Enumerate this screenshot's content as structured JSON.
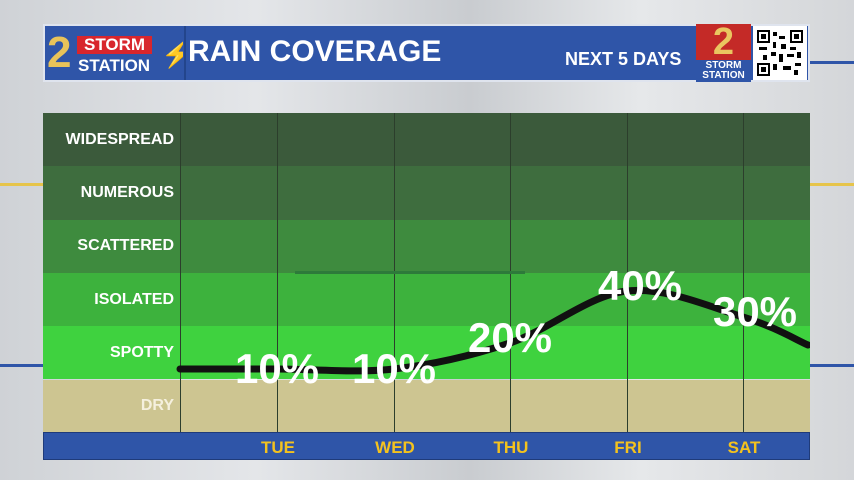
{
  "header": {
    "logo_text": "2 STORM STATION",
    "logo_storm": "STORM",
    "logo_station": "STATION",
    "logo_number": "2",
    "title": "RAIN COVERAGE",
    "subtitle": "NEXT 5 DAYS",
    "badge_number": "2",
    "badge_text1": "STORM",
    "badge_text2": "STATION"
  },
  "chart_data": {
    "type": "line",
    "title": "RAIN COVERAGE",
    "subtitle": "NEXT 5 DAYS",
    "categories": [
      "TUE",
      "WED",
      "THU",
      "FRI",
      "SAT"
    ],
    "values": [
      10,
      10,
      20,
      40,
      30
    ],
    "labels": [
      "10%",
      "10%",
      "20%",
      "40%",
      "30%"
    ],
    "ylabel_levels": [
      "WIDESPREAD",
      "NUMEROUS",
      "SCATTERED",
      "ISOLATED",
      "SPOTTY",
      "DRY"
    ],
    "ylim": [
      0,
      60
    ],
    "colors": {
      "widespread": "#3b5a3b",
      "numerous": "#3e6d3e",
      "scattered": "#3e8b3e",
      "isolated": "#3db23d",
      "spotty": "#3fd23f",
      "dry": "#cdc591",
      "line": "#111111"
    }
  }
}
